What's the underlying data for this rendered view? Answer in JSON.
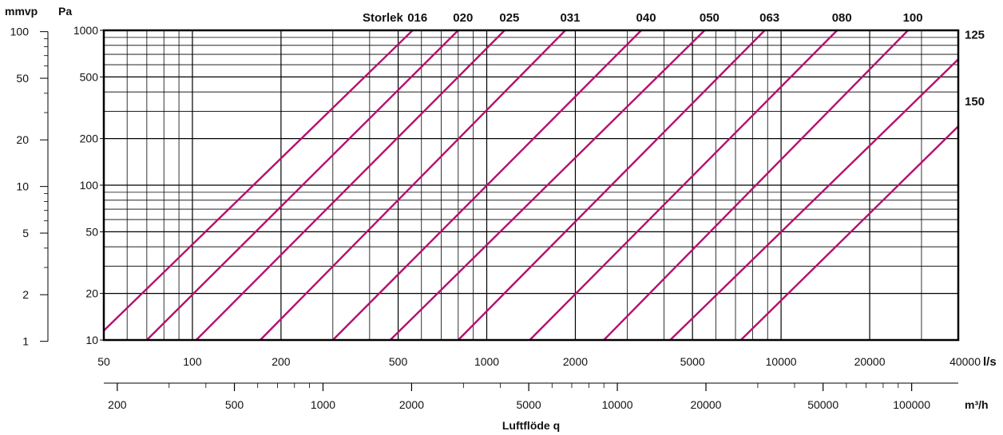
{
  "chart_data": {
    "type": "line",
    "title": "",
    "xlabel": "Luftflöde q",
    "x_unit_primary": "l/s",
    "x_unit_secondary": "m³/h",
    "y_unit_left_outer": "mmvp",
    "y_unit_left_inner": "Pa",
    "x_scale": "log",
    "y_scale": "log",
    "xlim": [
      50,
      40000
    ],
    "ylim": [
      10,
      1000
    ],
    "grid": true,
    "size_heading": "Storlek",
    "x_ticks_ls": [
      50,
      100,
      200,
      500,
      1000,
      2000,
      5000,
      10000,
      20000,
      40000
    ],
    "x_ticks_m3h": [
      200,
      500,
      1000,
      2000,
      5000,
      10000,
      20000,
      50000,
      100000
    ],
    "y_ticks_pa": [
      10,
      20,
      50,
      100,
      200,
      500,
      1000
    ],
    "y_ticks_mmvp": [
      1,
      2,
      5,
      10,
      20,
      50,
      100
    ],
    "line_color": "#b5106e",
    "series": [
      {
        "name": "016",
        "x": [
          50,
          560
        ],
        "y": [
          11.5,
          1000
        ]
      },
      {
        "name": "020",
        "x": [
          70,
          800
        ],
        "y": [
          10,
          1000
        ]
      },
      {
        "name": "025",
        "x": [
          103,
          1150
        ],
        "y": [
          10,
          1000
        ]
      },
      {
        "name": "031",
        "x": [
          170,
          1850
        ],
        "y": [
          10,
          1000
        ]
      },
      {
        "name": "040",
        "x": [
          300,
          3350
        ],
        "y": [
          10,
          1000
        ]
      },
      {
        "name": "050",
        "x": [
          470,
          5500
        ],
        "y": [
          10,
          1000
        ]
      },
      {
        "name": "063",
        "x": [
          800,
          8800
        ],
        "y": [
          10,
          1000
        ]
      },
      {
        "name": "080",
        "x": [
          1400,
          15500
        ],
        "y": [
          10,
          1000
        ]
      },
      {
        "name": "100",
        "x": [
          2500,
          27000
        ],
        "y": [
          10,
          1000
        ]
      },
      {
        "name": "125",
        "x": [
          4200,
          40000
        ],
        "y": [
          10,
          650
        ]
      },
      {
        "name": "150",
        "x": [
          7300,
          40000
        ],
        "y": [
          10,
          240
        ]
      }
    ]
  }
}
